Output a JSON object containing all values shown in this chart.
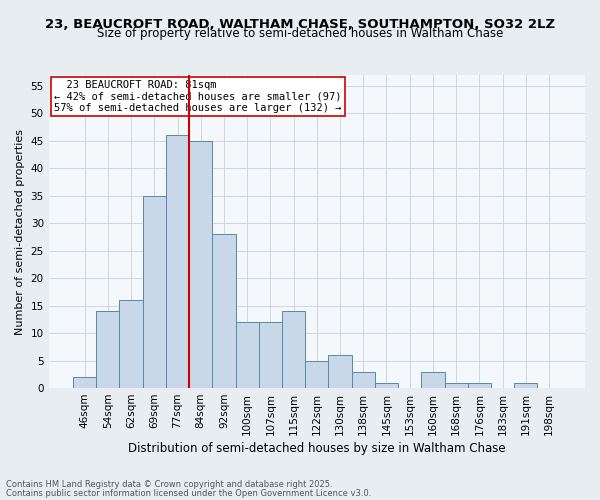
{
  "title_line1": "23, BEAUCROFT ROAD, WALTHAM CHASE, SOUTHAMPTON, SO32 2LZ",
  "title_line2": "Size of property relative to semi-detached houses in Waltham Chase",
  "xlabel": "Distribution of semi-detached houses by size in Waltham Chase",
  "ylabel": "Number of semi-detached properties",
  "categories": [
    "46sqm",
    "54sqm",
    "62sqm",
    "69sqm",
    "77sqm",
    "84sqm",
    "92sqm",
    "100sqm",
    "107sqm",
    "115sqm",
    "122sqm",
    "130sqm",
    "138sqm",
    "145sqm",
    "153sqm",
    "160sqm",
    "168sqm",
    "176sqm",
    "183sqm",
    "191sqm",
    "198sqm"
  ],
  "values": [
    2,
    14,
    16,
    35,
    46,
    45,
    28,
    12,
    12,
    14,
    5,
    6,
    3,
    1,
    0,
    3,
    1,
    1,
    0,
    1,
    0
  ],
  "bar_color": "#c8d8e8",
  "bar_edge_color": "#5588aa",
  "bar_edge_width": 0.7,
  "subject_label": "23 BEAUCROFT ROAD: 81sqm",
  "pct_smaller": 42,
  "pct_smaller_n": 97,
  "pct_larger": 57,
  "pct_larger_n": 132,
  "vline_color": "#cc0000",
  "vline_x": 4.5,
  "ylim": [
    0,
    57
  ],
  "yticks": [
    0,
    5,
    10,
    15,
    20,
    25,
    30,
    35,
    40,
    45,
    50,
    55
  ],
  "annotation_box_color": "#cc0000",
  "footer_line1": "Contains HM Land Registry data © Crown copyright and database right 2025.",
  "footer_line2": "Contains public sector information licensed under the Open Government Licence v3.0.",
  "bg_color": "#e8edf2",
  "plot_bg_color": "#f5f8fb",
  "grid_color": "#c8d0d8",
  "title_fontsize": 9.5,
  "subtitle_fontsize": 8.5,
  "ylabel_fontsize": 8.0,
  "xlabel_fontsize": 8.5,
  "tick_fontsize": 7.5,
  "footer_fontsize": 6.0
}
